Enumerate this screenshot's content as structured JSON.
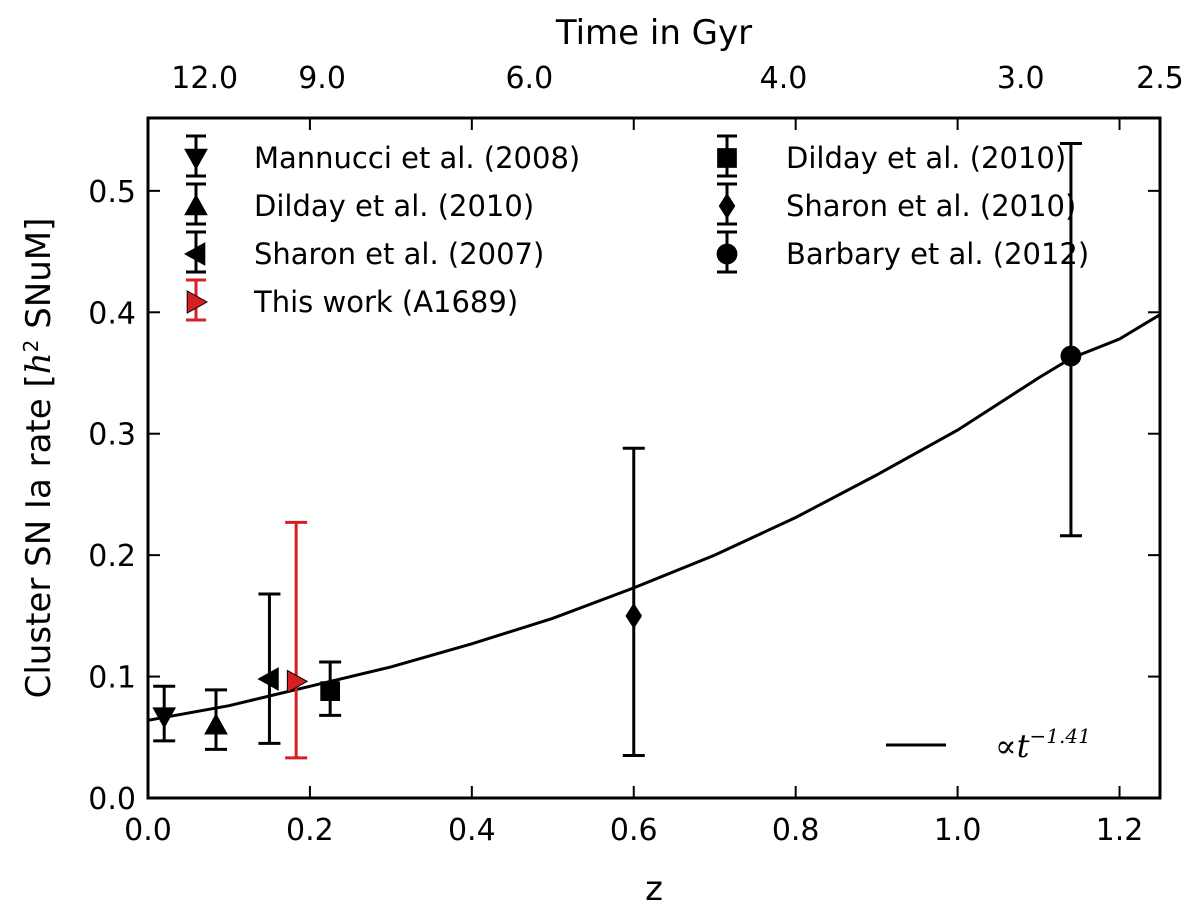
{
  "chart_data": {
    "type": "scatter",
    "xlabel": "z",
    "ylabel_prefix": "Cluster SN Ia rate [",
    "ylabel_unit_h": "h",
    "ylabel_unit_exp": "2",
    "ylabel_suffix": " SNuM]",
    "top_xlabel": "Time in Gyr",
    "xlim": [
      0.0,
      1.25
    ],
    "ylim": [
      0.0,
      0.56
    ],
    "xticks": [
      {
        "value": 0.0,
        "label": "0.0"
      },
      {
        "value": 0.2,
        "label": "0.2"
      },
      {
        "value": 0.4,
        "label": "0.4"
      },
      {
        "value": 0.6,
        "label": "0.6"
      },
      {
        "value": 0.8,
        "label": "0.8"
      },
      {
        "value": 1.0,
        "label": "1.0"
      },
      {
        "value": 1.2,
        "label": "1.2"
      }
    ],
    "yticks": [
      {
        "value": 0.0,
        "label": "0.0"
      },
      {
        "value": 0.1,
        "label": "0.1"
      },
      {
        "value": 0.2,
        "label": "0.2"
      },
      {
        "value": 0.3,
        "label": "0.3"
      },
      {
        "value": 0.4,
        "label": "0.4"
      },
      {
        "value": 0.5,
        "label": "0.5"
      }
    ],
    "top_ticks": [
      {
        "z": 0.07,
        "label": "12.0"
      },
      {
        "z": 0.215,
        "label": "9.0"
      },
      {
        "z": 0.471,
        "label": "6.0"
      },
      {
        "z": 0.785,
        "label": "4.0"
      },
      {
        "z": 1.078,
        "label": "3.0"
      },
      {
        "z": 1.25,
        "label": "2.5"
      }
    ],
    "series": [
      {
        "name": "Mannucci et al. (2008)",
        "marker": "triangle-down",
        "color": "#000000",
        "x": 0.02,
        "y": 0.067,
        "y_low": 0.047,
        "y_high": 0.092
      },
      {
        "name": "Dilday et al. (2010)",
        "marker": "triangle-up",
        "color": "#000000",
        "x": 0.084,
        "y": 0.06,
        "y_low": 0.04,
        "y_high": 0.089
      },
      {
        "name": "Sharon et al. (2007)",
        "marker": "triangle-left",
        "color": "#000000",
        "x": 0.15,
        "y": 0.098,
        "y_low": 0.045,
        "y_high": 0.168
      },
      {
        "name": "This work (A1689)",
        "marker": "triangle-right",
        "color": "#d42020",
        "x": 0.183,
        "y": 0.096,
        "y_low": 0.033,
        "y_high": 0.227
      },
      {
        "name": "Dilday et al. (2010)",
        "marker": "square",
        "color": "#000000",
        "x": 0.225,
        "y": 0.088,
        "y_low": 0.068,
        "y_high": 0.112
      },
      {
        "name": "Sharon et al. (2010)",
        "marker": "diamond",
        "color": "#000000",
        "x": 0.6,
        "y": 0.15,
        "y_low": 0.035,
        "y_high": 0.288
      },
      {
        "name": "Barbary et al. (2012)",
        "marker": "circle",
        "color": "#000000",
        "x": 1.14,
        "y": 0.364,
        "y_low": 0.216,
        "y_high": 0.539
      }
    ],
    "fit": {
      "label_base": "∝t",
      "label_exp": "−1.41",
      "color": "#000000",
      "points": [
        [
          0.0,
          0.064
        ],
        [
          0.1,
          0.076
        ],
        [
          0.2,
          0.092
        ],
        [
          0.3,
          0.108
        ],
        [
          0.4,
          0.127
        ],
        [
          0.5,
          0.148
        ],
        [
          0.6,
          0.173
        ],
        [
          0.7,
          0.2
        ],
        [
          0.8,
          0.231
        ],
        [
          0.9,
          0.266
        ],
        [
          1.0,
          0.303
        ],
        [
          1.1,
          0.346
        ],
        [
          1.14,
          0.362
        ],
        [
          1.2,
          0.378
        ],
        [
          1.25,
          0.398
        ]
      ]
    }
  }
}
